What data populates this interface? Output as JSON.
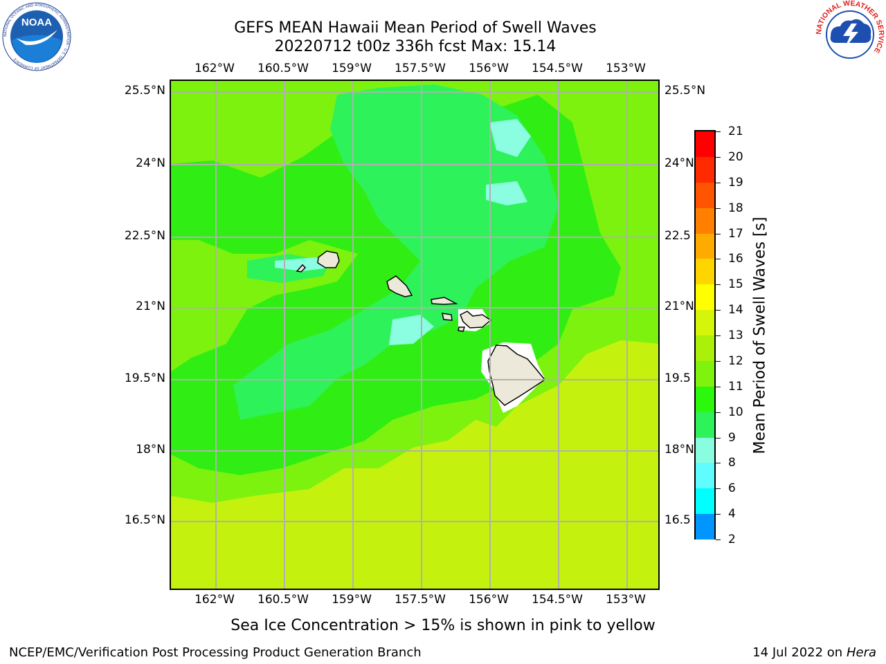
{
  "title": {
    "line1": "GEFS MEAN Hawaii Mean Period of Swell Waves",
    "line2": "20220712 t00z 336h fcst   Max: 15.14"
  },
  "map": {
    "lon_ticks": [
      "162°W",
      "160.5°W",
      "159°W",
      "157.5°W",
      "156°W",
      "154.5°W",
      "153°W"
    ],
    "lat_ticks_left": [
      "25.5°N",
      "24°N",
      "22.5°N",
      "21°N",
      "19.5°N",
      "18°N",
      "16.5°N"
    ],
    "lat_ticks_right": [
      "25.5°N",
      "24°N",
      "22.5",
      "21°N",
      "19.5",
      "18°N",
      "16.5"
    ],
    "ocean_colors": {
      "level_10_11": "#2ef25a",
      "level_11_12": "#30ee14",
      "level_12_13": "#7df20e",
      "level_13_14": "#c4f20e",
      "level_9_10": "#8bfde1",
      "land": "#ece9da",
      "grid": "#b0b0b0"
    }
  },
  "colorbar": {
    "title": "Mean Period of Swell Waves [s]",
    "labels": [
      "21",
      "20",
      "19",
      "18",
      "17",
      "16",
      "15",
      "14",
      "13",
      "12",
      "11",
      "10",
      "9",
      "8",
      "6",
      "4",
      "2"
    ],
    "colors": [
      "#ff0000",
      "#ff2a00",
      "#ff5500",
      "#ff8000",
      "#ffaa00",
      "#ffd500",
      "#ffff00",
      "#d5f50a",
      "#aaf00a",
      "#7ff20e",
      "#2cf80e",
      "#2ef25a",
      "#8afde0",
      "#5ffdff",
      "#00ffff",
      "#0095ff",
      "#0000ff"
    ]
  },
  "footnote": "Sea Ice Concentration > 15% is shown in pink to yellow",
  "footer": {
    "left": "NCEP/EMC/Verification Post Processing Product Generation Branch",
    "date": "14 Jul 2022 on",
    "machine": "Hera"
  },
  "logos": {
    "noaa": "NOAA",
    "noaa_ring": "NATIONAL OCEANIC AND ATMOSPHERIC ADMINISTRATION · U.S. DEPARTMENT OF COMMERCE",
    "nws_ring": "NATIONAL WEATHER SERVICE"
  }
}
